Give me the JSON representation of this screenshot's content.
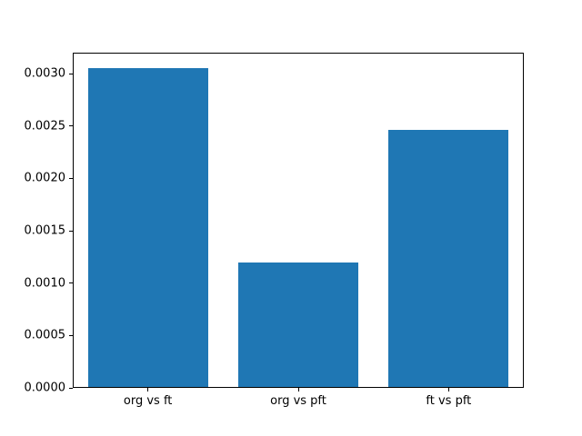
{
  "chart_data": {
    "type": "bar",
    "categories": [
      "org vs ft",
      "org vs pft",
      "ft vs pft"
    ],
    "values": [
      0.00305,
      0.0012,
      0.00246
    ],
    "title": "",
    "xlabel": "",
    "ylabel": "",
    "ylim": [
      0,
      0.0032
    ],
    "y_ticks": [
      0.0,
      0.0005,
      0.001,
      0.0015,
      0.002,
      0.0025,
      0.003
    ],
    "y_tick_labels": [
      "0.0000",
      "0.0005",
      "0.0010",
      "0.0015",
      "0.0020",
      "0.0025",
      "0.0030"
    ],
    "bar_width_fraction": 0.8,
    "grid": false,
    "legend_position": "none",
    "bar_color": "#1f77b4"
  },
  "colors": {
    "background": "#ffffff",
    "spine": "#000000",
    "tick_text": "#000000"
  }
}
